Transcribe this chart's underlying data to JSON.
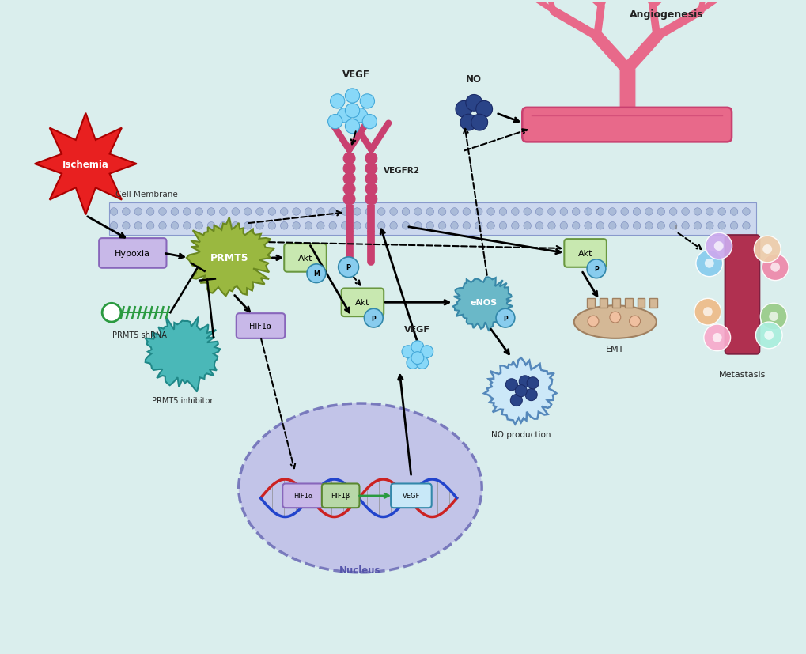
{
  "bg_color": "#daeeed",
  "title_angiogenesis": "Angiogenesis",
  "title_nucleus": "Nucleus",
  "title_metastasis": "Metastasis",
  "title_emt": "EMT",
  "title_no_production": "NO production",
  "title_cell_membrane": "Cell Membrane",
  "label_ischemia": "Ischemia",
  "label_hypoxia": "Hypoxia",
  "label_prmt5": "PRMT5",
  "label_prmt5_shrna": "PRMT5 shRNA",
  "label_prmt5_inhibitor": "PRMT5 inhibitor",
  "label_hif1a": "HIF1α",
  "label_hif1a_nucleus": "HIF1α",
  "label_hif1b": "HIF1β",
  "label_vegf_box": "VEGF",
  "label_vegf_top": "VEGF",
  "label_vegf_mid": "VEGF",
  "label_vegfr2": "VEGFR2",
  "label_akt_top": "Akt",
  "label_akt_mid": "Akt",
  "label_akt_bottom": "Akt",
  "label_enos": "eNOS",
  "label_no": "NO",
  "label_p": "P",
  "label_m": "M",
  "vessel_color": "#e8698a",
  "vessel_outline": "#c94070",
  "receptor_color": "#c94070",
  "membrane_top_color": "#c8d8f0",
  "membrane_bot_color": "#b0c0e0",
  "membrane_dot_color": "#9aafd0",
  "ischemia_color": "#e82020",
  "hypoxia_fill": "#c8b8e8",
  "hypoxia_outline": "#8866bb",
  "prmt5_color": "#9ab840",
  "prmt5_outline": "#6a8820",
  "inhibitor_color": "#4ab8b8",
  "inhibitor_outline": "#208888",
  "shrna_color": "#2a9a40",
  "hif1a_label_fill": "#c8b8e8",
  "hif1a_label_outline": "#8866bb",
  "akt_fill": "#c8e8b0",
  "akt_outline": "#6a9840",
  "enos_fill": "#6ab8c8",
  "enos_outline": "#3888a8",
  "nucleus_fill": "#c0c0e8",
  "nucleus_outline": "#7070b8",
  "vegf_dot_color": "#88d8f8",
  "vegf_dot_outline": "#44a8d8",
  "no_dot_color": "#2a4488",
  "no_dot_outline": "#1a2a66",
  "p_circle_fill": "#88ccee",
  "p_circle_outline": "#3388aa",
  "green_arrow_color": "#2a9a40",
  "black_arrow_color": "#111111",
  "emt_fill": "#d4b896",
  "emt_outline": "#a08060",
  "meta_vessel_color": "#b03050",
  "meta_vessel_outline": "#802040"
}
